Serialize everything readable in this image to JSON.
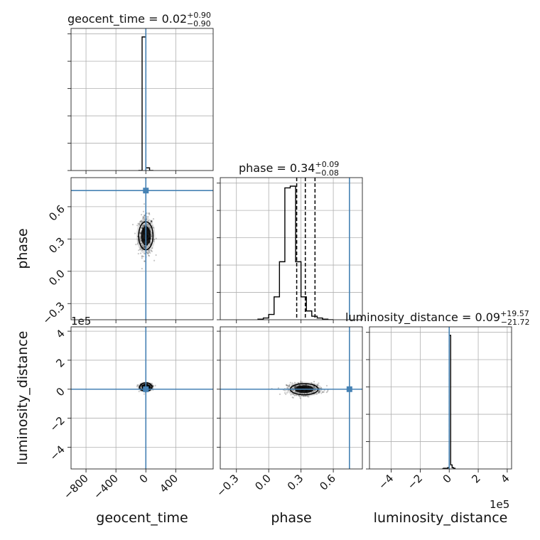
{
  "chart_data": {
    "type": "corner",
    "parameters": [
      "geocent_time",
      "phase",
      "luminosity_distance"
    ],
    "axis_labels": {
      "geocent_time": "geocent_time",
      "phase": "phase",
      "luminosity_distance": "luminosity_distance"
    },
    "ranges": {
      "geocent_time": [
        -1000,
        900
      ],
      "phase": [
        -0.45,
        0.87
      ],
      "luminosity_distance": [
        -550000,
        430000
      ]
    },
    "ticks": {
      "geocent_time": {
        "values": [
          -800,
          -400,
          0,
          400
        ],
        "labels": [
          "−800",
          "−400",
          "0",
          "400"
        ]
      },
      "phase": {
        "values": [
          -0.3,
          0.0,
          0.3,
          0.6
        ],
        "labels": [
          "−0.3",
          "0.0",
          "0.3",
          "0.6"
        ]
      },
      "luminosity_distance": {
        "values": [
          -400000,
          -200000,
          0,
          200000,
          400000
        ],
        "labels": [
          "−4",
          "−2",
          "0",
          "2",
          "4"
        ]
      }
    },
    "offset_text": {
      "luminosity_distance": "1e5"
    },
    "injection": {
      "geocent_time": 0,
      "phase": 0.75,
      "luminosity_distance": 0
    },
    "injection_color": "#4682b4",
    "titles": [
      {
        "param": "geocent_time",
        "text": "geocent_time = 0.02",
        "plus": "+0.90",
        "minus": "−0.90"
      },
      {
        "param": "phase",
        "text": "phase = 0.34",
        "plus": "+0.09",
        "minus": "−0.08"
      },
      {
        "param": "luminosity_distance",
        "text": "luminosity_distance = 0.09",
        "plus": "+19.57",
        "minus": "−21.72"
      }
    ],
    "histograms": {
      "geocent_time": {
        "edges": [
          -100,
          -50,
          0,
          50,
          100
        ],
        "counts": [
          0,
          1.0,
          0.02,
          0
        ],
        "quantiles": [
          0
        ]
      },
      "phase": {
        "edges": [
          -0.1,
          -0.05,
          0.0,
          0.05,
          0.1,
          0.15,
          0.2,
          0.25,
          0.3,
          0.35,
          0.4,
          0.45,
          0.5,
          0.55,
          0.6
        ],
        "counts": [
          0.003,
          0.01,
          0.03,
          0.13,
          0.33,
          0.75,
          0.76,
          0.33,
          0.13,
          0.05,
          0.02,
          0.01,
          0.003,
          0.0
        ],
        "quantiles": [
          0.26,
          0.34,
          0.43
        ]
      },
      "luminosity_distance": {
        "edges": [
          -50000,
          -40000,
          -30000,
          -20000,
          -10000,
          0,
          10000,
          20000,
          30000,
          40000
        ],
        "counts": [
          0,
          0.005,
          0.005,
          0.005,
          0.01,
          1.0,
          0.03,
          0.01,
          0.005
        ],
        "quantiles": [
          0
        ]
      }
    },
    "scatter_2d": {
      "phase_vs_geocent_time": {
        "x_center": 0,
        "x_spread": 50,
        "y_center": 0.33,
        "y_spread": 0.09
      },
      "luminosity_distance_vs_geocent_time": {
        "x_center": 0,
        "x_spread": 40,
        "y_center": 15000,
        "y_spread": 12000
      },
      "luminosity_distance_vs_phase": {
        "x_center": 0.33,
        "x_spread": 0.08,
        "y_center": 0,
        "y_spread": 20000
      }
    },
    "grid": true
  }
}
